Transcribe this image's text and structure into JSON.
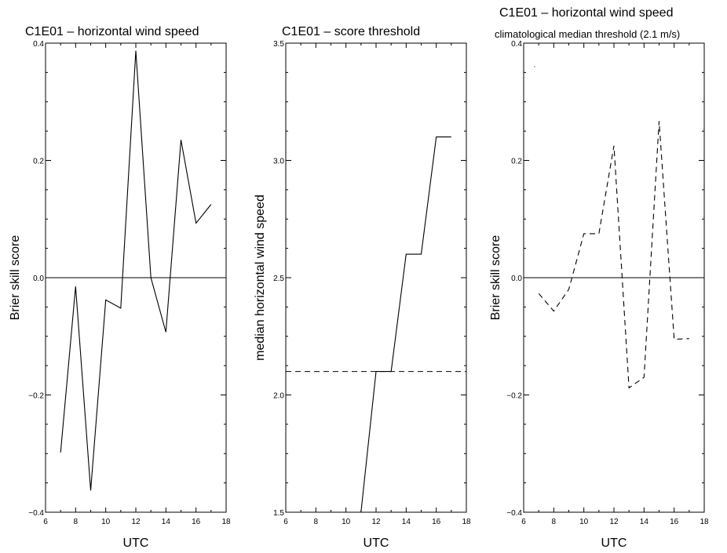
{
  "chart_data": [
    {
      "type": "line",
      "title": "C1E01 – horizontal wind speed",
      "subtitle": "",
      "xlabel": "UTC",
      "ylabel": "Brier skill score",
      "xlim": [
        6,
        18
      ],
      "ylim": [
        -0.4,
        0.4
      ],
      "xticks": [
        "6",
        "8",
        "10",
        "12",
        "14",
        "16",
        "18"
      ],
      "yticks": [
        "-0.4",
        "-0.2",
        "0.0",
        "0.2",
        "0.4"
      ],
      "grid": false,
      "reference_lines": [
        {
          "y": 0.0,
          "style": "solid"
        }
      ],
      "series": [
        {
          "style": "solid",
          "x": [
            7,
            8,
            9,
            10,
            11,
            12,
            13,
            14,
            15,
            16,
            17
          ],
          "y": [
            -0.298,
            -0.015,
            -0.363,
            -0.038,
            -0.052,
            0.387,
            0.0,
            -0.093,
            0.235,
            0.093,
            0.125
          ]
        }
      ]
    },
    {
      "type": "line",
      "title": "C1E01 – score threshold",
      "subtitle": "",
      "xlabel": "UTC",
      "ylabel": "median horizontal wind speed",
      "xlim": [
        6,
        18
      ],
      "ylim": [
        1.5,
        3.5
      ],
      "xticks": [
        "6",
        "8",
        "10",
        "12",
        "14",
        "16",
        "18"
      ],
      "yticks": [
        "1.5",
        "2.0",
        "2.5",
        "3.0",
        "3.5"
      ],
      "grid": false,
      "reference_lines": [
        {
          "y": 2.1,
          "style": "dashed"
        }
      ],
      "series": [
        {
          "style": "solid",
          "x": [
            11,
            12,
            13,
            14,
            15,
            16,
            17
          ],
          "y": [
            1.5,
            2.1,
            2.1,
            2.6,
            2.6,
            3.1,
            3.1
          ]
        }
      ]
    },
    {
      "type": "line",
      "title": "C1E01 – horizontal wind speed",
      "subtitle": "climatological median threshold (2.1 m/s)",
      "xlabel": "UTC",
      "ylabel": "Brier skill score",
      "xlim": [
        6,
        18
      ],
      "ylim": [
        -0.4,
        0.4
      ],
      "xticks": [
        "6",
        "8",
        "10",
        "12",
        "14",
        "16",
        "18"
      ],
      "yticks": [
        "-0.4",
        "-0.2",
        "0.0",
        "0.2",
        "0.4"
      ],
      "grid": false,
      "reference_lines": [
        {
          "y": 0.0,
          "style": "solid"
        }
      ],
      "series": [
        {
          "style": "dashed",
          "x": [
            6.7,
            6.75
          ],
          "y": [
            0.36,
            0.36
          ]
        },
        {
          "style": "dashed",
          "x": [
            7,
            8,
            9,
            10,
            11,
            12,
            13,
            14,
            15,
            16,
            17
          ],
          "y": [
            -0.027,
            -0.057,
            -0.02,
            0.075,
            0.075,
            0.225,
            -0.188,
            -0.17,
            0.267,
            -0.105,
            -0.104
          ]
        }
      ]
    }
  ]
}
